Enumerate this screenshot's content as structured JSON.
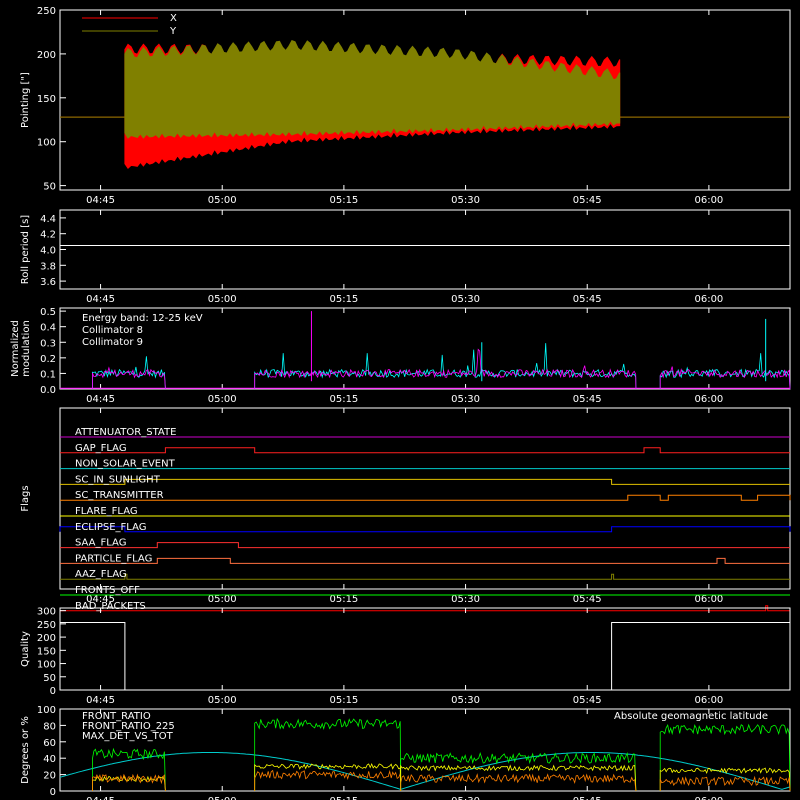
{
  "time_ticks": [
    "04:45",
    "05:00",
    "05:15",
    "05:30",
    "05:45",
    "06:00"
  ],
  "chart_data": [
    {
      "id": "pointing",
      "type": "line",
      "ylabel": "Pointing [\"]",
      "ylim": [
        45,
        250
      ],
      "yticks": [
        "50",
        "100",
        "150",
        "200",
        "250"
      ],
      "ytick_values": [
        50,
        100,
        150,
        200,
        250
      ],
      "legend": [
        {
          "name": "X",
          "color": "#ff0000"
        },
        {
          "name": "Y",
          "color": "#808000"
        }
      ],
      "series": [
        {
          "name": "X",
          "color": "#ff0000",
          "baseline": 128,
          "active_start": "04:48",
          "active_end": "05:49",
          "oscillation_low": [
            75,
            105,
            115,
            122
          ],
          "oscillation_high": [
            205,
            205,
            195,
            190
          ]
        },
        {
          "name": "Y",
          "color": "#808000",
          "baseline": 128,
          "active_start": "04:48",
          "active_end": "05:49",
          "oscillation_low": [
            110,
            113,
            118,
            125
          ],
          "oscillation_high": [
            200,
            210,
            200,
            175
          ]
        }
      ]
    },
    {
      "id": "roll",
      "type": "line",
      "ylabel": "Roll period [s]",
      "ylim": [
        3.5,
        4.5
      ],
      "yticks": [
        "3.6",
        "3.8",
        "4.0",
        "4.2",
        "4.4"
      ],
      "ytick_values": [
        3.6,
        3.8,
        4.0,
        4.2,
        4.4
      ],
      "series": [
        {
          "name": "",
          "color": "#ffffff",
          "value": 4.05
        }
      ]
    },
    {
      "id": "modulation",
      "type": "line",
      "ylabel": "Normalized modulation",
      "ylim": [
        0,
        0.52
      ],
      "yticks": [
        "0.0",
        "0.1",
        "0.2",
        "0.3",
        "0.4",
        "0.5"
      ],
      "ytick_values": [
        0.0,
        0.1,
        0.2,
        0.3,
        0.4,
        0.5
      ],
      "annotation": "Energy band: 12-25 keV",
      "legend": [
        {
          "name": "Collimator 8",
          "color": "#00ffff"
        },
        {
          "name": "Collimator 9",
          "color": "#ff00ff"
        }
      ],
      "segments": [
        {
          "start": "04:44",
          "end": "04:53",
          "level": 0.1
        },
        {
          "start": "05:04",
          "end": "05:51",
          "level": 0.1
        },
        {
          "start": "05:54",
          "end": "06:10",
          "level": 0.1
        }
      ]
    },
    {
      "id": "flags",
      "type": "line",
      "ylabel": "Flags",
      "flags": [
        {
          "name": "ATTENUATOR_STATE",
          "color": "#cc00cc",
          "on": []
        },
        {
          "name": "GAP_FLAG",
          "color": "#ff2020",
          "on": [
            [
              "04:53",
              "05:04"
            ],
            [
              "05:52",
              "05:54"
            ]
          ]
        },
        {
          "name": "NON_SOLAR_EVENT",
          "color": "#00cccc",
          "on": []
        },
        {
          "name": "SC_IN_SUNLIGHT",
          "color": "#e0c000",
          "on": [
            [
              "04:48",
              "05:48"
            ]
          ]
        },
        {
          "name": "SC_TRANSMITTER",
          "color": "#ff8000",
          "on": [
            [
              "05:50",
              "05:54"
            ],
            [
              "05:55",
              "06:04"
            ],
            [
              "06:06",
              "06:10"
            ]
          ]
        },
        {
          "name": "FLARE_FLAG",
          "color": "#ffff00",
          "on": []
        },
        {
          "name": "ECLIPSE_FLAG",
          "color": "#0000ff",
          "on": [
            [
              "04:40",
              "04:48"
            ],
            [
              "05:48",
              "06:10"
            ]
          ]
        },
        {
          "name": "SAA_FLAG",
          "color": "#ff3030",
          "on": [
            [
              "04:52",
              "05:02"
            ]
          ]
        },
        {
          "name": "PARTICLE_FLAG",
          "color": "#ff7040",
          "on": [
            [
              "04:52",
              "05:01"
            ],
            [
              "06:01",
              "06:02"
            ]
          ]
        },
        {
          "name": "AAZ_FLAG",
          "color": "#808000",
          "on": [
            [
              "04:48",
              "04:48"
            ],
            [
              "05:48",
              "05:48"
            ]
          ]
        },
        {
          "name": "FRONTS_OFF",
          "color": "#00ff00",
          "on": []
        },
        {
          "name": "BAD_PACKETS",
          "color": "#ff0000",
          "on": [
            [
              "06:07",
              "06:07"
            ]
          ]
        }
      ]
    },
    {
      "id": "quality",
      "type": "line",
      "ylabel": "Quality",
      "ylim": [
        0,
        310
      ],
      "yticks": [
        "0",
        "50",
        "100",
        "150",
        "200",
        "250",
        "300"
      ],
      "ytick_values": [
        0,
        50,
        100,
        150,
        200,
        250,
        300
      ],
      "series": [
        {
          "name": "",
          "color": "#ffffff",
          "steps": [
            [
              "04:40",
              255
            ],
            [
              "04:48",
              0
            ],
            [
              "05:48",
              255
            ],
            [
              "06:10",
              255
            ]
          ]
        }
      ]
    },
    {
      "id": "ratios",
      "type": "line",
      "ylabel": "Degrees or %",
      "ylim": [
        0,
        100
      ],
      "yticks": [
        "0",
        "20",
        "40",
        "60",
        "80",
        "100"
      ],
      "ytick_values": [
        0,
        20,
        40,
        60,
        80,
        100
      ],
      "annotation": "Absolute geomagnetic latitude",
      "legend": [
        {
          "name": "FRONT_RATIO",
          "color": "#ffff00"
        },
        {
          "name": "FRONT_RATIO_225",
          "color": "#00ff00"
        },
        {
          "name": "MAX_DET_VS_TOT",
          "color": "#ff8000"
        }
      ],
      "series": [
        {
          "name": "FRONT_RATIO",
          "color": "#ffff00",
          "level": 30
        },
        {
          "name": "FRONT_RATIO_225",
          "color": "#00ff00",
          "level": 82
        },
        {
          "name": "MAX_DET_VS_TOT",
          "color": "#ff8000",
          "level": 20
        },
        {
          "name": "Absolute geomagnetic latitude",
          "color": "#00cccc",
          "min": 0,
          "max": 50
        }
      ]
    }
  ],
  "colors": {
    "axis": "#ffffff",
    "background": "#000000"
  }
}
